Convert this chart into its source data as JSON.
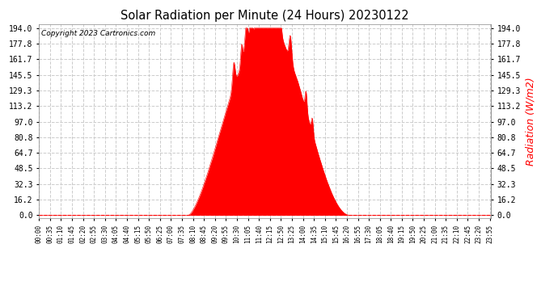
{
  "title": "Solar Radiation per Minute (24 Hours) 20230122",
  "ylabel": "Radiation (W/m2)",
  "copyright_text": "Copyright 2023 Cartronics.com",
  "fill_color": "#FF0000",
  "background_color": "#FFFFFF",
  "grid_color": "#CCCCCC",
  "y_ticks": [
    0.0,
    16.2,
    32.3,
    48.5,
    64.7,
    80.8,
    97.0,
    113.2,
    129.3,
    145.5,
    161.7,
    177.8,
    194.0
  ],
  "y_max": 194.0,
  "dashed_line_color": "#FF0000",
  "total_minutes": 1440,
  "sunrise_minute": 475,
  "sunset_minute": 990,
  "solar_noon": 730,
  "x_tick_step": 35
}
